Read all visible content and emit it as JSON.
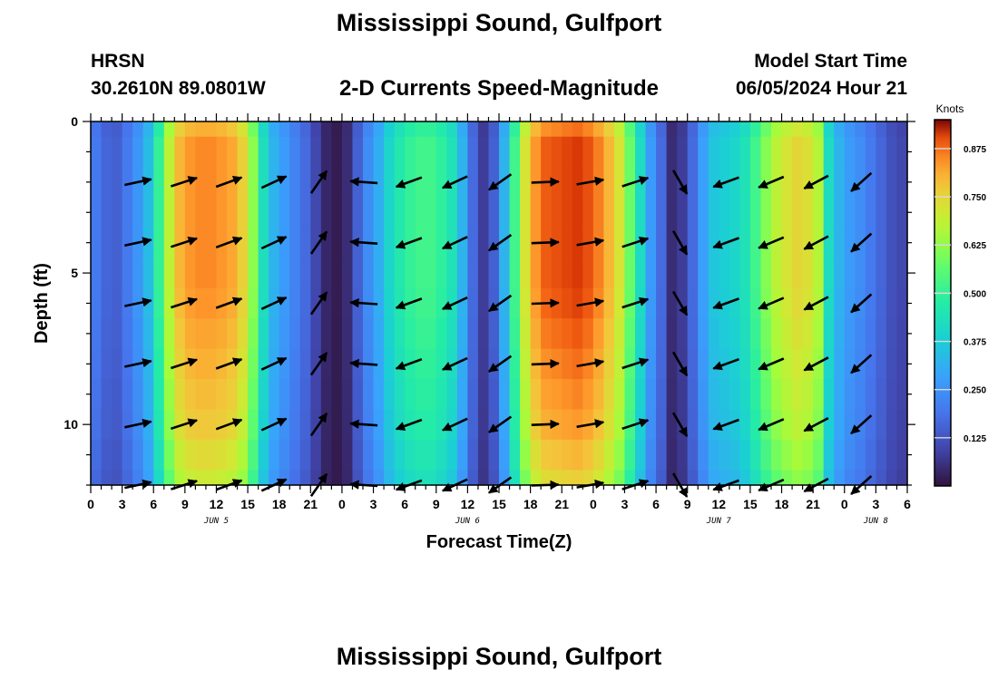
{
  "header": {
    "title": "Mississippi Sound, Gulfport",
    "station_id": "HRSN",
    "station_coords": "30.2610N  89.0801W",
    "subtitle": "2-D Currents Speed-Magnitude",
    "model_start_label": "Model Start Time",
    "model_start_time": "06/05/2024 Hour 21"
  },
  "footer": {
    "title": "Mississippi Sound, Gulfport"
  },
  "chart_data": {
    "type": "heatmap",
    "title": "2-D Currents Speed-Magnitude",
    "xlabel": "Forecast Time(Z)",
    "ylabel": "Depth (ft)",
    "colorbar_label": "Knots",
    "x_range_hours": [
      0,
      78
    ],
    "x_hour_step": 1,
    "y_range_ft": [
      0,
      12
    ],
    "depth_rows_ft": [
      0,
      1,
      2,
      3,
      4,
      5,
      6,
      7,
      8,
      9,
      10,
      11,
      12
    ],
    "x_ticks": [
      {
        "hour": 0,
        "label": "0"
      },
      {
        "hour": 3,
        "label": "3"
      },
      {
        "hour": 6,
        "label": "6"
      },
      {
        "hour": 9,
        "label": "9"
      },
      {
        "hour": 12,
        "label": "12"
      },
      {
        "hour": 15,
        "label": "15"
      },
      {
        "hour": 18,
        "label": "18"
      },
      {
        "hour": 21,
        "label": "21"
      },
      {
        "hour": 24,
        "label": "0"
      },
      {
        "hour": 27,
        "label": "3"
      },
      {
        "hour": 30,
        "label": "6"
      },
      {
        "hour": 33,
        "label": "9"
      },
      {
        "hour": 36,
        "label": "12"
      },
      {
        "hour": 39,
        "label": "15"
      },
      {
        "hour": 42,
        "label": "18"
      },
      {
        "hour": 45,
        "label": "21"
      },
      {
        "hour": 48,
        "label": "0"
      },
      {
        "hour": 51,
        "label": "3"
      },
      {
        "hour": 54,
        "label": "6"
      },
      {
        "hour": 57,
        "label": "9"
      },
      {
        "hour": 60,
        "label": "12"
      },
      {
        "hour": 63,
        "label": "15"
      },
      {
        "hour": 66,
        "label": "18"
      },
      {
        "hour": 69,
        "label": "21"
      },
      {
        "hour": 72,
        "label": "0"
      },
      {
        "hour": 75,
        "label": "3"
      },
      {
        "hour": 78,
        "label": "6"
      }
    ],
    "date_labels": [
      {
        "hour": 12,
        "label": "JUN 5"
      },
      {
        "hour": 36,
        "label": "JUN 6"
      },
      {
        "hour": 60,
        "label": "JUN 7"
      },
      {
        "hour": 75,
        "label": "JUN 8"
      }
    ],
    "y_ticks": [
      {
        "ft": 0,
        "label": "0"
      },
      {
        "ft": 5,
        "label": "5"
      },
      {
        "ft": 10,
        "label": "10"
      }
    ],
    "color_range_knots": [
      0,
      0.95
    ],
    "colorbar_ticks": [
      {
        "value": 0.125,
        "label": "0.125"
      },
      {
        "value": 0.25,
        "label": "0.250"
      },
      {
        "value": 0.375,
        "label": "0.375"
      },
      {
        "value": 0.5,
        "label": "0.500"
      },
      {
        "value": 0.625,
        "label": "0.625"
      },
      {
        "value": 0.75,
        "label": "0.750"
      },
      {
        "value": 0.875,
        "label": "0.875"
      }
    ],
    "speed_by_hour_knots": [
      0.2,
      0.16,
      0.15,
      0.2,
      0.26,
      0.34,
      0.5,
      0.68,
      0.8,
      0.84,
      0.85,
      0.85,
      0.84,
      0.82,
      0.76,
      0.62,
      0.43,
      0.32,
      0.27,
      0.22,
      0.17,
      0.1,
      0.04,
      0.02,
      0.05,
      0.15,
      0.24,
      0.31,
      0.4,
      0.46,
      0.5,
      0.52,
      0.52,
      0.49,
      0.44,
      0.32,
      0.17,
      0.08,
      0.15,
      0.32,
      0.52,
      0.72,
      0.84,
      0.89,
      0.9,
      0.91,
      0.92,
      0.9,
      0.86,
      0.8,
      0.72,
      0.58,
      0.42,
      0.27,
      0.17,
      0.05,
      0.08,
      0.17,
      0.28,
      0.36,
      0.38,
      0.4,
      0.44,
      0.52,
      0.61,
      0.68,
      0.72,
      0.75,
      0.73,
      0.67,
      0.42,
      0.32,
      0.27,
      0.24,
      0.2,
      0.16,
      0.12,
      0.1
    ],
    "depth_factor": [
      0.95,
      1.0,
      1.0,
      1.0,
      1.0,
      1.0,
      0.99,
      0.97,
      0.95,
      0.93,
      0.91,
      0.87,
      0.83
    ],
    "vector_columns": [
      {
        "hour": 4.5,
        "angle_deg": 12
      },
      {
        "hour": 8.9,
        "angle_deg": 18
      },
      {
        "hour": 13.2,
        "angle_deg": 20
      },
      {
        "hour": 17.5,
        "angle_deg": 25
      },
      {
        "hour": 21.8,
        "angle_deg": 55
      },
      {
        "hour": 26.1,
        "angle_deg": 176
      },
      {
        "hour": 30.4,
        "angle_deg": 200
      },
      {
        "hour": 34.8,
        "angle_deg": 205
      },
      {
        "hour": 39.1,
        "angle_deg": 215
      },
      {
        "hour": 43.4,
        "angle_deg": 2
      },
      {
        "hour": 47.7,
        "angle_deg": 10
      },
      {
        "hour": 52.0,
        "angle_deg": 18
      },
      {
        "hour": 56.3,
        "angle_deg": 300
      },
      {
        "hour": 60.7,
        "angle_deg": 200
      },
      {
        "hour": 65.0,
        "angle_deg": 203
      },
      {
        "hour": 69.3,
        "angle_deg": 208
      },
      {
        "hour": 73.6,
        "angle_deg": 222
      }
    ],
    "vector_depths_ft": [
      2,
      4,
      6,
      8,
      10,
      12
    ]
  }
}
